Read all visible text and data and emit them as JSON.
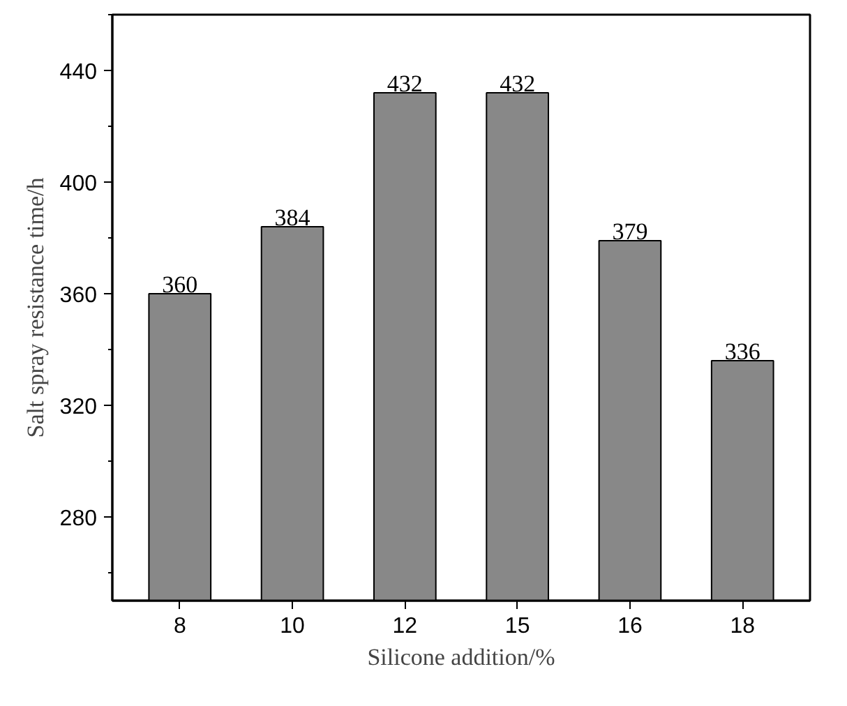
{
  "chart_data": {
    "type": "bar",
    "xlabel": "Silicone addition/%",
    "ylabel": "Salt spray resistance time/h",
    "categories": [
      "8",
      "10",
      "12",
      "15",
      "16",
      "18"
    ],
    "values": [
      360,
      384,
      432,
      432,
      379,
      336
    ],
    "color": "#888888",
    "data_labels": true,
    "ylim": [
      250,
      460
    ],
    "yticks": [
      280,
      320,
      360,
      400,
      440
    ],
    "grid": false
  }
}
